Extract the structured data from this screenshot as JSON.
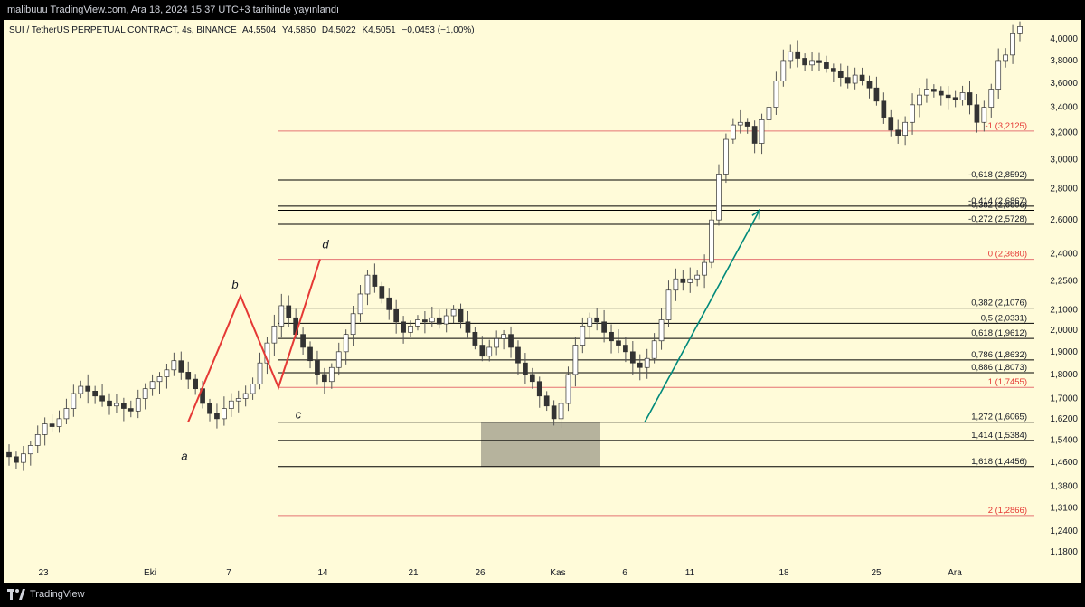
{
  "header": {
    "publish_text": "malibuuu TradingView.com, Ara 18, 2024 15:37 UTC+3 tarihinde yayınlandı"
  },
  "legend": {
    "symbol": "SUI / TetherUS PERPETUAL CONTRACT, 4s, BINANCE",
    "open": "A4,5504",
    "high": "Y4,5850",
    "low": "D4,5022",
    "close": "K4,5051",
    "change": "−0,0453 (−1,00%)"
  },
  "footer": {
    "brand": "TradingView"
  },
  "colors": {
    "background": "#fffbd9",
    "candle": "#555555",
    "pattern": "#e53935",
    "fib_black": "#000000",
    "fib_red": "#e57373",
    "arrow": "#00897b",
    "zone": "#9e9b88"
  },
  "chart_data": {
    "type": "candlestick",
    "y_scale": "log",
    "ylim": [
      1.15,
      4.15
    ],
    "y_ticks": [
      {
        "value": 4.0,
        "label": "4,0000"
      },
      {
        "value": 3.8,
        "label": "3,8000"
      },
      {
        "value": 3.6,
        "label": "3,6000"
      },
      {
        "value": 3.4,
        "label": "3,4000"
      },
      {
        "value": 3.2,
        "label": "3,2000"
      },
      {
        "value": 3.0,
        "label": "3,0000"
      },
      {
        "value": 2.8,
        "label": "2,8000"
      },
      {
        "value": 2.6,
        "label": "2,6000"
      },
      {
        "value": 2.4,
        "label": "2,4000"
      },
      {
        "value": 2.25,
        "label": "2,2500"
      },
      {
        "value": 2.1,
        "label": "2,1000"
      },
      {
        "value": 2.0,
        "label": "2,0000"
      },
      {
        "value": 1.9,
        "label": "1,9000"
      },
      {
        "value": 1.8,
        "label": "1,8000"
      },
      {
        "value": 1.7,
        "label": "1,7000"
      },
      {
        "value": 1.62,
        "label": "1,6200"
      },
      {
        "value": 1.54,
        "label": "1,5400"
      },
      {
        "value": 1.46,
        "label": "1,4600"
      },
      {
        "value": 1.38,
        "label": "1,3800"
      },
      {
        "value": 1.31,
        "label": "1,3100"
      },
      {
        "value": 1.24,
        "label": "1,2400"
      },
      {
        "value": 1.18,
        "label": "1,1800"
      }
    ],
    "x_ticks": [
      "23",
      "Eki",
      "7",
      "14",
      "21",
      "26",
      "Kas",
      "6",
      "11",
      "18",
      "25",
      "Ara"
    ],
    "close_series": [
      1.48,
      1.46,
      1.49,
      1.52,
      1.56,
      1.6,
      1.59,
      1.62,
      1.66,
      1.72,
      1.75,
      1.73,
      1.71,
      1.69,
      1.67,
      1.68,
      1.66,
      1.65,
      1.7,
      1.74,
      1.77,
      1.79,
      1.82,
      1.86,
      1.81,
      1.78,
      1.74,
      1.68,
      1.64,
      1.62,
      1.66,
      1.69,
      1.7,
      1.72,
      1.76,
      1.85,
      1.94,
      2.02,
      2.12,
      2.06,
      1.98,
      1.92,
      1.86,
      1.8,
      1.77,
      1.83,
      1.9,
      1.98,
      2.08,
      2.18,
      2.28,
      2.22,
      2.16,
      2.1,
      2.04,
      1.99,
      2.02,
      2.05,
      2.04,
      2.06,
      2.03,
      2.07,
      2.1,
      2.04,
      1.99,
      1.93,
      1.88,
      1.92,
      1.96,
      1.98,
      1.92,
      1.85,
      1.8,
      1.77,
      1.71,
      1.67,
      1.62,
      1.68,
      1.8,
      1.93,
      2.02,
      2.06,
      2.04,
      1.99,
      1.95,
      1.93,
      1.9,
      1.85,
      1.83,
      1.87,
      1.95,
      2.05,
      2.2,
      2.26,
      2.24,
      2.26,
      2.28,
      2.35,
      2.6,
      2.9,
      3.15,
      3.26,
      3.28,
      3.25,
      3.12,
      3.3,
      3.4,
      3.62,
      3.8,
      3.88,
      3.82,
      3.76,
      3.8,
      3.78,
      3.73,
      3.7,
      3.65,
      3.6,
      3.67,
      3.62,
      3.56,
      3.45,
      3.32,
      3.22,
      3.18,
      3.28,
      3.42,
      3.5,
      3.55,
      3.53,
      3.5,
      3.48,
      3.46,
      3.52,
      3.42,
      3.28,
      3.4,
      3.55,
      3.8,
      3.85,
      4.05,
      4.12
    ],
    "pattern_points": [
      {
        "label": "a",
        "value": 1.6065
      },
      {
        "label": "b",
        "value": 2.17
      },
      {
        "label": "c",
        "value": 1.7455
      },
      {
        "label": "d",
        "value": 2.368
      }
    ],
    "fib_levels": [
      {
        "ratio": "-1",
        "value": 3.2125,
        "label": "-1 (3,2125)",
        "color": "red"
      },
      {
        "ratio": "-0,618",
        "value": 2.8592,
        "label": "-0,618 (2,8592)",
        "color": "black"
      },
      {
        "ratio": "-0,414",
        "value": 2.6867,
        "label": "-0,414 (2,6867)",
        "color": "black"
      },
      {
        "ratio": "-0,382",
        "value": 2.6606,
        "label": "-0,382 (2,6606)",
        "color": "black"
      },
      {
        "ratio": "-0,272",
        "value": 2.5728,
        "label": "-0,272 (2,5728)",
        "color": "black"
      },
      {
        "ratio": "0",
        "value": 2.368,
        "label": "0 (2,3680)",
        "color": "red"
      },
      {
        "ratio": "0,382",
        "value": 2.1076,
        "label": "0,382 (2,1076)",
        "color": "black"
      },
      {
        "ratio": "0,5",
        "value": 2.0331,
        "label": "0,5 (2,0331)",
        "color": "black"
      },
      {
        "ratio": "0,618",
        "value": 1.9612,
        "label": "0,618 (1,9612)",
        "color": "black"
      },
      {
        "ratio": "0,786",
        "value": 1.8632,
        "label": "0,786 (1,8632)",
        "color": "black"
      },
      {
        "ratio": "0,886",
        "value": 1.8073,
        "label": "0,886 (1,8073)",
        "color": "black"
      },
      {
        "ratio": "1",
        "value": 1.7455,
        "label": "1 (1,7455)",
        "color": "red"
      },
      {
        "ratio": "1,272",
        "value": 1.6065,
        "label": "1,272 (1,6065)",
        "color": "black"
      },
      {
        "ratio": "1,414",
        "value": 1.5384,
        "label": "1,414 (1,5384)",
        "color": "black"
      },
      {
        "ratio": "1,618",
        "value": 1.4456,
        "label": "1,618 (1,4456)",
        "color": "black"
      },
      {
        "ratio": "2",
        "value": 1.2866,
        "label": "2 (1,2866)",
        "color": "red"
      }
    ],
    "zone": {
      "top": 1.6065,
      "bottom": 1.4456
    },
    "arrow": {
      "from": 1.6065,
      "to": 2.6606
    }
  }
}
